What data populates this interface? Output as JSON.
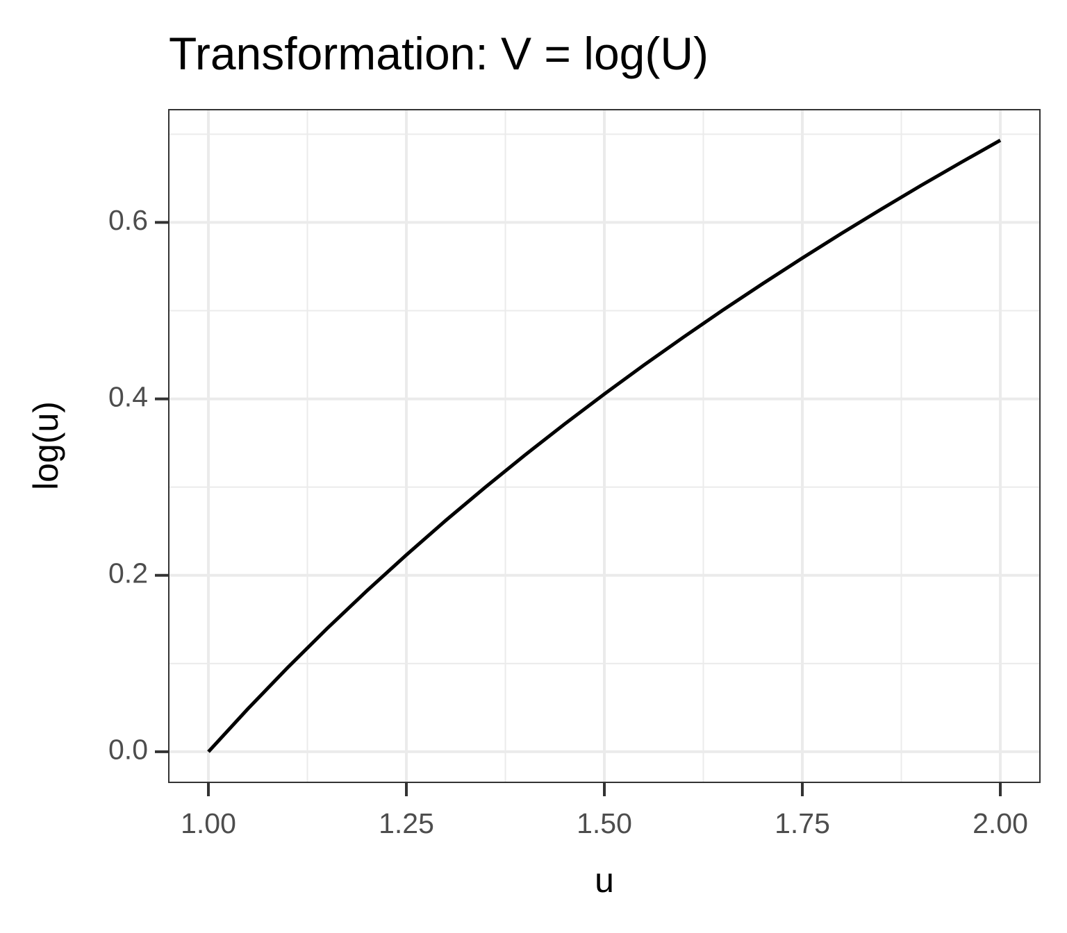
{
  "chart_data": {
    "type": "line",
    "title": "Transformation: V = log(U)",
    "x_label": "u",
    "y_label": "log(u)",
    "x": [
      1.0,
      1.05,
      1.1,
      1.15,
      1.2,
      1.25,
      1.3,
      1.35,
      1.4,
      1.45,
      1.5,
      1.55,
      1.6,
      1.65,
      1.7,
      1.75,
      1.8,
      1.85,
      1.9,
      1.95,
      2.0
    ],
    "series": [
      {
        "color": "#000000",
        "values": [
          0,
          0.0488,
          0.0953,
          0.1398,
          0.1823,
          0.2231,
          0.2624,
          0.3001,
          0.3365,
          0.3716,
          0.4055,
          0.4383,
          0.47,
          0.5008,
          0.5306,
          0.5596,
          0.5878,
          0.6152,
          0.6419,
          0.6678,
          0.6931
        ]
      }
    ],
    "xlim": [
      0.95,
      2.05
    ],
    "ylim": [
      -0.0347,
      0.7278
    ],
    "xticks": [
      {
        "value": 1,
        "label": "1.00"
      },
      1.25,
      {
        "value": 1.5,
        "label": "1.50"
      },
      1.75,
      {
        "value": 2,
        "label": "2.00"
      }
    ],
    "yticks": [
      {
        "value": 0,
        "label": "0.0"
      },
      0.2,
      0.4,
      0.6
    ],
    "grid": true
  }
}
